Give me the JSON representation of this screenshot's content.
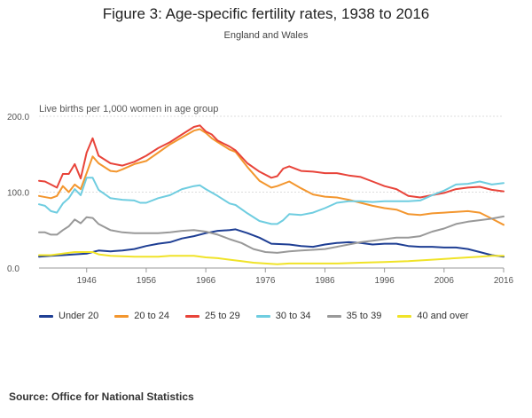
{
  "title": "Figure 3: Age-specific fertility rates, 1938 to 2016",
  "subtitle": "England and Wales",
  "source": "Source: Office for National Statistics",
  "chart_data": {
    "type": "line",
    "title": "Figure 3: Age-specific fertility rates, 1938 to 2016",
    "subtitle": "England and Wales",
    "ylabel": "Live births per 1,000 women in age group",
    "xlim": [
      1938,
      2016
    ],
    "ylim": [
      0,
      200
    ],
    "yticks": [
      0,
      100,
      200
    ],
    "ytick_labels": [
      "0.0",
      "100.0",
      "200.0"
    ],
    "xticks": [
      1946,
      1956,
      1966,
      1976,
      1986,
      1996,
      2006,
      2016
    ],
    "grid": "horizontal",
    "legend_position": "bottom",
    "series": [
      {
        "name": "Under 20",
        "color": "#1f3f94",
        "points": [
          [
            1938,
            15
          ],
          [
            1940,
            16
          ],
          [
            1942,
            17
          ],
          [
            1944,
            18
          ],
          [
            1946,
            19
          ],
          [
            1947,
            21
          ],
          [
            1948,
            23
          ],
          [
            1950,
            22
          ],
          [
            1952,
            23
          ],
          [
            1954,
            25
          ],
          [
            1956,
            29
          ],
          [
            1958,
            32
          ],
          [
            1960,
            34
          ],
          [
            1962,
            39
          ],
          [
            1964,
            42
          ],
          [
            1966,
            46
          ],
          [
            1968,
            49
          ],
          [
            1970,
            50
          ],
          [
            1971,
            51
          ],
          [
            1973,
            46
          ],
          [
            1975,
            40
          ],
          [
            1977,
            32
          ],
          [
            1980,
            31
          ],
          [
            1982,
            29
          ],
          [
            1984,
            28
          ],
          [
            1986,
            31
          ],
          [
            1988,
            33
          ],
          [
            1990,
            34
          ],
          [
            1992,
            33
          ],
          [
            1994,
            31
          ],
          [
            1996,
            32
          ],
          [
            1998,
            32
          ],
          [
            2000,
            29
          ],
          [
            2002,
            28
          ],
          [
            2004,
            28
          ],
          [
            2006,
            27
          ],
          [
            2008,
            27
          ],
          [
            2010,
            25
          ],
          [
            2012,
            21
          ],
          [
            2014,
            17
          ],
          [
            2016,
            15
          ]
        ]
      },
      {
        "name": "20 to 24",
        "color": "#f3962e",
        "points": [
          [
            1938,
            95
          ],
          [
            1940,
            92
          ],
          [
            1941,
            95
          ],
          [
            1942,
            108
          ],
          [
            1943,
            100
          ],
          [
            1944,
            110
          ],
          [
            1945,
            104
          ],
          [
            1946,
            125
          ],
          [
            1947,
            147
          ],
          [
            1948,
            138
          ],
          [
            1950,
            128
          ],
          [
            1951,
            127
          ],
          [
            1952,
            130
          ],
          [
            1954,
            137
          ],
          [
            1956,
            141
          ],
          [
            1958,
            152
          ],
          [
            1960,
            163
          ],
          [
            1962,
            172
          ],
          [
            1964,
            181
          ],
          [
            1965,
            183
          ],
          [
            1966,
            178
          ],
          [
            1967,
            171
          ],
          [
            1968,
            166
          ],
          [
            1970,
            156
          ],
          [
            1971,
            153
          ],
          [
            1973,
            133
          ],
          [
            1975,
            115
          ],
          [
            1977,
            106
          ],
          [
            1978,
            108
          ],
          [
            1980,
            114
          ],
          [
            1982,
            105
          ],
          [
            1984,
            97
          ],
          [
            1986,
            94
          ],
          [
            1988,
            93
          ],
          [
            1990,
            90
          ],
          [
            1992,
            86
          ],
          [
            1994,
            82
          ],
          [
            1996,
            79
          ],
          [
            1998,
            77
          ],
          [
            2000,
            71
          ],
          [
            2002,
            70
          ],
          [
            2004,
            72
          ],
          [
            2006,
            73
          ],
          [
            2008,
            74
          ],
          [
            2010,
            75
          ],
          [
            2012,
            73
          ],
          [
            2014,
            65
          ],
          [
            2016,
            57
          ]
        ]
      },
      {
        "name": "25 to 29",
        "color": "#e8443a",
        "points": [
          [
            1938,
            115
          ],
          [
            1939,
            114
          ],
          [
            1940,
            110
          ],
          [
            1941,
            106
          ],
          [
            1942,
            124
          ],
          [
            1943,
            124
          ],
          [
            1944,
            137
          ],
          [
            1945,
            118
          ],
          [
            1946,
            152
          ],
          [
            1947,
            171
          ],
          [
            1948,
            148
          ],
          [
            1950,
            138
          ],
          [
            1952,
            135
          ],
          [
            1954,
            140
          ],
          [
            1956,
            148
          ],
          [
            1958,
            158
          ],
          [
            1960,
            166
          ],
          [
            1962,
            176
          ],
          [
            1964,
            186
          ],
          [
            1965,
            188
          ],
          [
            1966,
            180
          ],
          [
            1967,
            176
          ],
          [
            1968,
            168
          ],
          [
            1970,
            160
          ],
          [
            1971,
            155
          ],
          [
            1973,
            138
          ],
          [
            1975,
            127
          ],
          [
            1977,
            119
          ],
          [
            1978,
            121
          ],
          [
            1979,
            131
          ],
          [
            1980,
            134
          ],
          [
            1982,
            128
          ],
          [
            1984,
            127
          ],
          [
            1986,
            125
          ],
          [
            1988,
            125
          ],
          [
            1990,
            122
          ],
          [
            1992,
            120
          ],
          [
            1994,
            114
          ],
          [
            1996,
            108
          ],
          [
            1998,
            104
          ],
          [
            2000,
            95
          ],
          [
            2002,
            93
          ],
          [
            2004,
            96
          ],
          [
            2006,
            99
          ],
          [
            2008,
            104
          ],
          [
            2010,
            106
          ],
          [
            2012,
            107
          ],
          [
            2014,
            103
          ],
          [
            2016,
            101
          ]
        ]
      },
      {
        "name": "30 to 34",
        "color": "#6fcde0",
        "points": [
          [
            1938,
            84
          ],
          [
            1939,
            82
          ],
          [
            1940,
            75
          ],
          [
            1941,
            73
          ],
          [
            1942,
            85
          ],
          [
            1943,
            92
          ],
          [
            1944,
            104
          ],
          [
            1945,
            96
          ],
          [
            1946,
            119
          ],
          [
            1947,
            119
          ],
          [
            1948,
            103
          ],
          [
            1950,
            92
          ],
          [
            1952,
            90
          ],
          [
            1954,
            89
          ],
          [
            1955,
            86
          ],
          [
            1956,
            86
          ],
          [
            1958,
            92
          ],
          [
            1960,
            96
          ],
          [
            1962,
            104
          ],
          [
            1964,
            108
          ],
          [
            1965,
            109
          ],
          [
            1966,
            104
          ],
          [
            1968,
            95
          ],
          [
            1970,
            85
          ],
          [
            1971,
            83
          ],
          [
            1973,
            72
          ],
          [
            1975,
            62
          ],
          [
            1977,
            58
          ],
          [
            1978,
            58
          ],
          [
            1979,
            63
          ],
          [
            1980,
            71
          ],
          [
            1982,
            70
          ],
          [
            1984,
            73
          ],
          [
            1986,
            79
          ],
          [
            1988,
            86
          ],
          [
            1990,
            88
          ],
          [
            1992,
            88
          ],
          [
            1994,
            87
          ],
          [
            1996,
            88
          ],
          [
            1998,
            88
          ],
          [
            2000,
            88
          ],
          [
            2002,
            89
          ],
          [
            2004,
            96
          ],
          [
            2006,
            102
          ],
          [
            2008,
            110
          ],
          [
            2010,
            111
          ],
          [
            2012,
            114
          ],
          [
            2014,
            110
          ],
          [
            2016,
            112
          ]
        ]
      },
      {
        "name": "35 to 39",
        "color": "#999999",
        "points": [
          [
            1938,
            47
          ],
          [
            1939,
            47
          ],
          [
            1940,
            44
          ],
          [
            1941,
            44
          ],
          [
            1942,
            50
          ],
          [
            1943,
            55
          ],
          [
            1944,
            64
          ],
          [
            1945,
            59
          ],
          [
            1946,
            67
          ],
          [
            1947,
            66
          ],
          [
            1948,
            58
          ],
          [
            1950,
            50
          ],
          [
            1952,
            47
          ],
          [
            1954,
            46
          ],
          [
            1956,
            46
          ],
          [
            1958,
            46
          ],
          [
            1960,
            47
          ],
          [
            1962,
            49
          ],
          [
            1964,
            50
          ],
          [
            1966,
            48
          ],
          [
            1968,
            44
          ],
          [
            1970,
            38
          ],
          [
            1972,
            33
          ],
          [
            1974,
            25
          ],
          [
            1976,
            21
          ],
          [
            1978,
            20
          ],
          [
            1980,
            22
          ],
          [
            1982,
            23
          ],
          [
            1984,
            24
          ],
          [
            1986,
            25
          ],
          [
            1988,
            28
          ],
          [
            1990,
            31
          ],
          [
            1992,
            34
          ],
          [
            1994,
            36
          ],
          [
            1996,
            38
          ],
          [
            1998,
            40
          ],
          [
            2000,
            40
          ],
          [
            2002,
            42
          ],
          [
            2004,
            48
          ],
          [
            2006,
            52
          ],
          [
            2008,
            58
          ],
          [
            2010,
            61
          ],
          [
            2012,
            63
          ],
          [
            2014,
            65
          ],
          [
            2016,
            68
          ]
        ]
      },
      {
        "name": "40 and over",
        "color": "#f0e328",
        "points": [
          [
            1938,
            17
          ],
          [
            1940,
            17
          ],
          [
            1942,
            19
          ],
          [
            1944,
            21
          ],
          [
            1946,
            21
          ],
          [
            1947,
            21
          ],
          [
            1948,
            18
          ],
          [
            1950,
            16
          ],
          [
            1954,
            15
          ],
          [
            1958,
            15
          ],
          [
            1960,
            16
          ],
          [
            1962,
            16
          ],
          [
            1964,
            16
          ],
          [
            1966,
            14
          ],
          [
            1968,
            13
          ],
          [
            1970,
            11
          ],
          [
            1972,
            9
          ],
          [
            1974,
            7
          ],
          [
            1976,
            6
          ],
          [
            1978,
            5
          ],
          [
            1980,
            6
          ],
          [
            1984,
            6
          ],
          [
            1988,
            6
          ],
          [
            1992,
            7
          ],
          [
            1996,
            8
          ],
          [
            2000,
            9
          ],
          [
            2004,
            11
          ],
          [
            2008,
            13
          ],
          [
            2012,
            15
          ],
          [
            2014,
            16
          ],
          [
            2016,
            16
          ]
        ]
      }
    ]
  }
}
